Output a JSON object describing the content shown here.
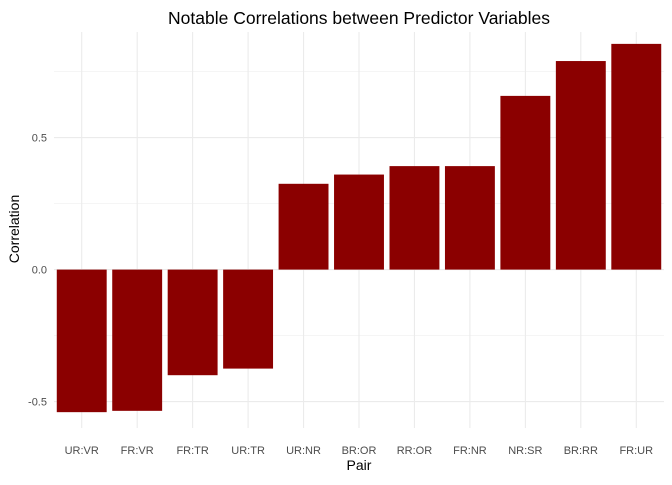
{
  "chart_data": {
    "type": "bar",
    "title": "Notable Correlations between Predictor Variables",
    "xlabel": "Pair",
    "ylabel": "Correlation",
    "categories": [
      "UR:VR",
      "FR:VR",
      "FR:TR",
      "UR:TR",
      "UR:NR",
      "BR:OR",
      "RR:OR",
      "FR:NR",
      "NR:SR",
      "BR:RR",
      "FR:UR"
    ],
    "values": [
      -0.54,
      -0.535,
      -0.4,
      -0.375,
      0.325,
      0.36,
      0.392,
      0.392,
      0.658,
      0.79,
      0.855
    ],
    "ylim": [
      -0.6,
      0.9
    ],
    "y_ticks": [
      -0.5,
      0.0,
      0.5
    ],
    "y_tick_labels": [
      "-0.5",
      "0.0",
      "0.5"
    ],
    "grid": true,
    "bar_color": "#8B0000",
    "grid_color": "#ebebeb"
  }
}
